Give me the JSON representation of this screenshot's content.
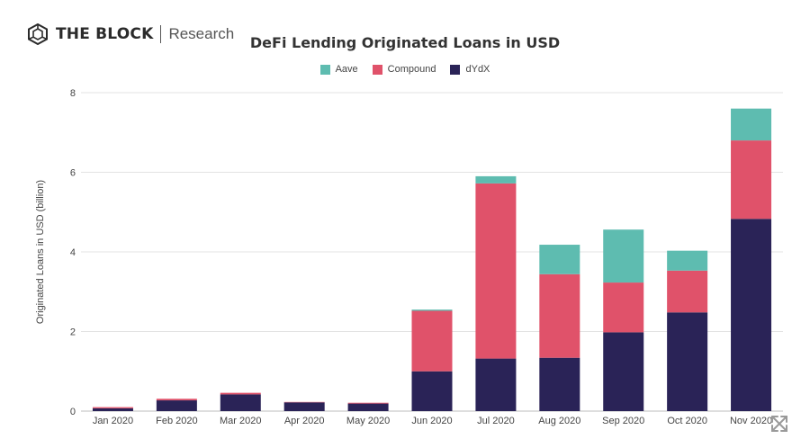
{
  "brand": {
    "name": "THE BLOCK",
    "subtitle": "Research"
  },
  "expand_icon": "expand-arrows-icon",
  "chart_data": {
    "type": "bar",
    "stacked": true,
    "title": "DeFi Lending Originated Loans in USD",
    "xlabel": "",
    "ylabel": "Originated Loans in USD (billion)",
    "ylim": [
      0,
      8
    ],
    "yticks": [
      0,
      2,
      4,
      6,
      8
    ],
    "grid": true,
    "legend_position": "top-center",
    "categories": [
      "Jan 2020",
      "Feb 2020",
      "Mar 2020",
      "Apr 2020",
      "May 2020",
      "Jun 2020",
      "Jul 2020",
      "Aug 2020",
      "Sep 2020",
      "Oct 2020",
      "Nov 2020"
    ],
    "legend_order": [
      "Aave",
      "Compound",
      "dYdX"
    ],
    "series": [
      {
        "name": "dYdX",
        "color": "#2a2357",
        "values": [
          0.07,
          0.27,
          0.42,
          0.22,
          0.19,
          1.0,
          1.32,
          1.34,
          1.98,
          2.48,
          4.83
        ]
      },
      {
        "name": "Compound",
        "color": "#e0526a",
        "values": [
          0.03,
          0.04,
          0.04,
          0.01,
          0.02,
          1.52,
          4.4,
          2.1,
          1.25,
          1.05,
          1.97
        ]
      },
      {
        "name": "Aave",
        "color": "#5ebcb0",
        "values": [
          0.0,
          0.0,
          0.0,
          0.0,
          0.0,
          0.03,
          0.18,
          0.74,
          1.33,
          0.5,
          0.8
        ]
      }
    ]
  }
}
